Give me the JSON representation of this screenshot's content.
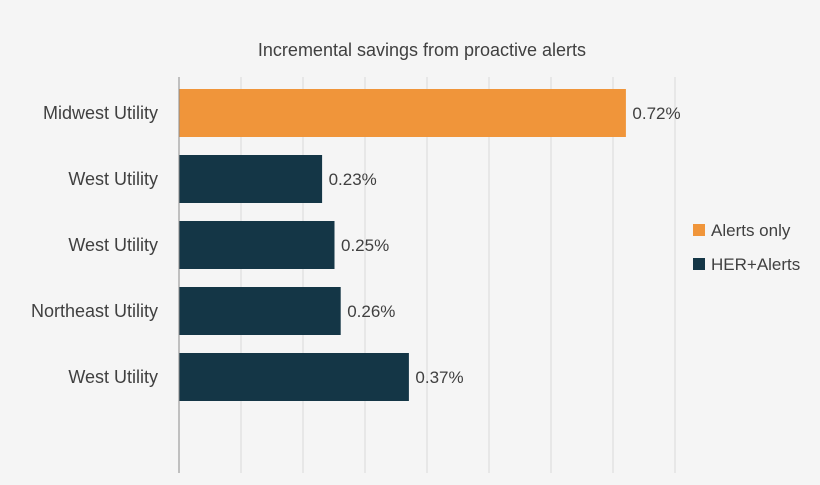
{
  "chart_data": {
    "type": "bar",
    "orientation": "horizontal",
    "title": "Incremental savings from proactive alerts",
    "xlabel": "",
    "ylabel": "",
    "xlim": [
      0,
      0.8
    ],
    "grid": true,
    "legend_position": "right",
    "categories": [
      "Midwest Utility",
      "West Utility",
      "West Utility",
      "Northeast Utility",
      "West Utility"
    ],
    "values": [
      0.72,
      0.23,
      0.25,
      0.26,
      0.37
    ],
    "value_labels": [
      "0.72%",
      "0.23%",
      "0.25%",
      "0.26%",
      "0.37%"
    ],
    "bar_series": [
      "Alerts only",
      "HER+Alerts",
      "HER+Alerts",
      "HER+Alerts",
      "HER+Alerts"
    ],
    "series": [
      {
        "name": "Alerts only",
        "color": "#f0953a"
      },
      {
        "name": "HER+Alerts",
        "color": "#143646"
      }
    ]
  },
  "colors": {
    "background": "#f5f5f5",
    "grid": "#d9d9d9",
    "axis": "#8c8c8c",
    "text": "#404040"
  }
}
